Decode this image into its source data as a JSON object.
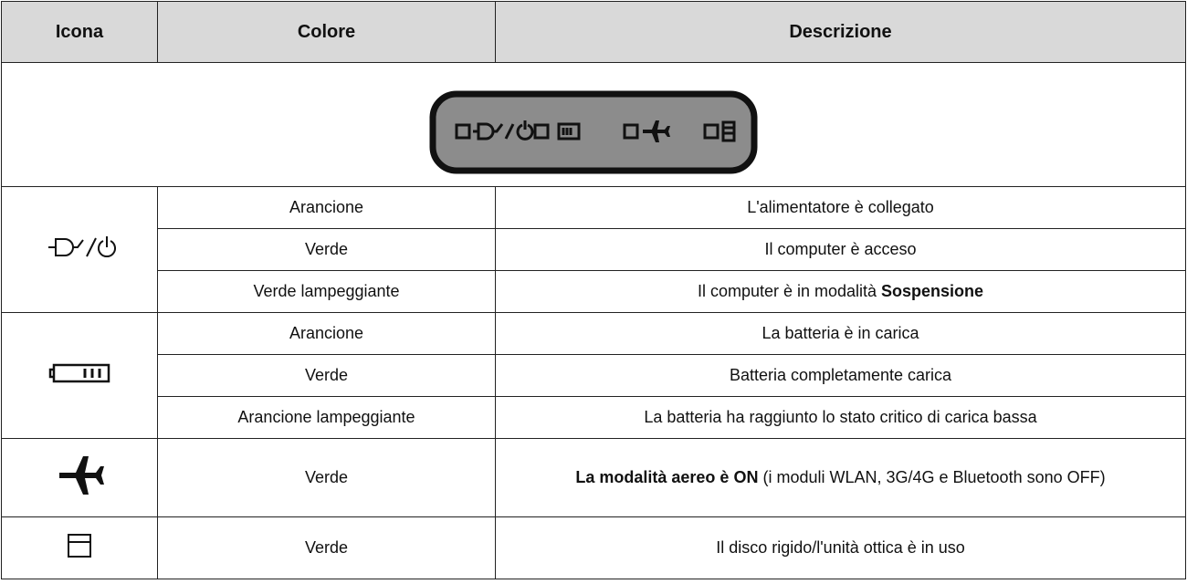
{
  "table": {
    "header": [
      "Icona",
      "Colore",
      "Descrizione"
    ],
    "groups": [
      {
        "rows": [
          {
            "color": "Arancione",
            "description": [
              {
                "text": "L'alimentatore è collegato"
              }
            ]
          },
          {
            "color": "Verde",
            "description": [
              {
                "text": "Il computer è acceso"
              }
            ]
          },
          {
            "color": "Verde lampeggiante",
            "description": [
              {
                "text": "Il computer è in modalità "
              },
              {
                "text": "Sospensione",
                "bold": true
              }
            ]
          }
        ]
      },
      {
        "rows": [
          {
            "color": "Arancione",
            "description": [
              {
                "text": "La batteria è in carica"
              }
            ]
          },
          {
            "color": "Verde",
            "description": [
              {
                "text": "Batteria completamente carica"
              }
            ]
          },
          {
            "color": "Arancione lampeggiante",
            "description": [
              {
                "text": "La batteria ha raggiunto lo stato critico di carica bassa"
              }
            ]
          }
        ]
      },
      {
        "rows": [
          {
            "color": "Verde",
            "description": [
              {
                "text": "La modalità aereo è ON",
                "bold": true
              },
              {
                "text": " (i moduli WLAN, 3G/4G e Bluetooth sono OFF)"
              }
            ]
          }
        ]
      },
      {
        "rows": [
          {
            "color": "Verde",
            "description": [
              {
                "text": "Il disco rigido/l'unità ottica è in uso"
              }
            ]
          }
        ]
      }
    ]
  }
}
